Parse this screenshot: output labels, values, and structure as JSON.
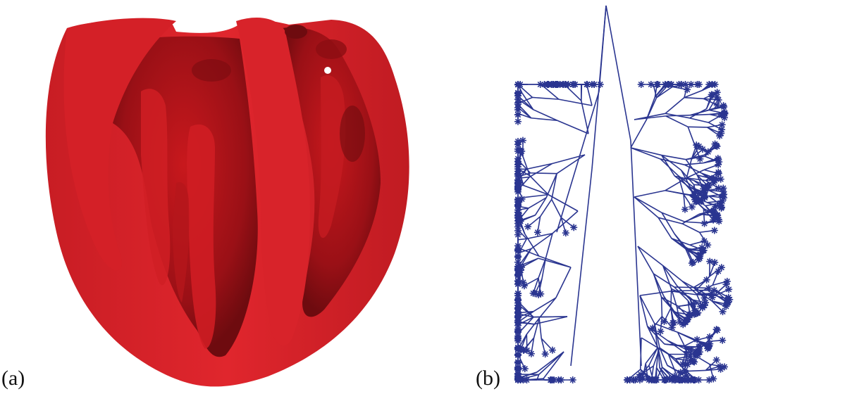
{
  "figure": {
    "panel_a": {
      "label": "(a)",
      "fill_color": "#d42027",
      "shade_color": "#7a0c10"
    },
    "panel_b": {
      "label": "(b)",
      "stroke_color": "#2a3590"
    }
  }
}
